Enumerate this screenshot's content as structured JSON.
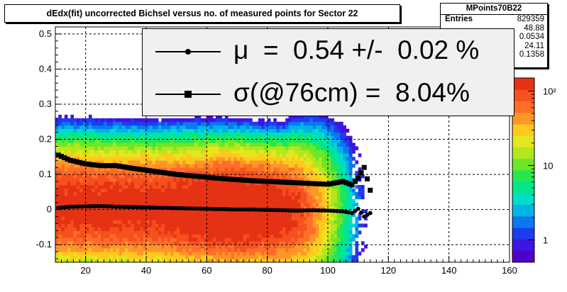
{
  "title": "dEdx(fit) uncorrected Bichsel versus no. of measured points for Sector 22",
  "stats": {
    "name": "MPoints70B22",
    "rows": [
      {
        "key": "Entries",
        "value": "829359"
      },
      {
        "key": "",
        "value": "48.88"
      },
      {
        "key": "",
        "value": "0.0534"
      },
      {
        "key": "",
        "value": "24.11"
      },
      {
        "key": "",
        "value": "0.1358"
      }
    ]
  },
  "legend": {
    "items": [
      {
        "text": "μ  =  0.54 +/-  0.02 %",
        "marker": "circle"
      },
      {
        "text": "σ(@76cm) =  8.04%",
        "marker": "square"
      }
    ]
  },
  "colors": {
    "palette": [
      "#5000c8",
      "#3f16e0",
      "#1e3cf0",
      "#0a78f0",
      "#00b4e6",
      "#00dcc8",
      "#00e68c",
      "#28e650",
      "#6ee628",
      "#b4e61e",
      "#e6e61e",
      "#ffc81e",
      "#ff9628",
      "#ff6e28",
      "#f5501e",
      "#e63214"
    ],
    "markers": "#000000"
  },
  "chart_data": {
    "type": "heatmap",
    "title": "dEdx(fit) uncorrected Bichsel versus no. of measured points for Sector 22",
    "xlabel": "",
    "ylabel": "",
    "xlim": [
      10,
      160
    ],
    "ylim": [
      -0.15,
      0.52
    ],
    "z_scale": "log",
    "zlim": [
      0.5,
      150
    ],
    "x_ticks": [
      20,
      40,
      60,
      80,
      100,
      120,
      140,
      160
    ],
    "y_ticks": [
      -0.1,
      0,
      0.1,
      0.2,
      0.3,
      0.4,
      0.5
    ],
    "z_ticks": [
      "1",
      "10",
      "10²"
    ],
    "grid": true,
    "series": [
      {
        "marker": "circle",
        "x": [
          11,
          15,
          20,
          25,
          30,
          35,
          40,
          45,
          50,
          55,
          60,
          65,
          70,
          75,
          80,
          85,
          90,
          95,
          100,
          105,
          108,
          110,
          112,
          114
        ],
        "values": [
          0.005,
          0.008,
          0.009,
          0.01,
          0.008,
          0.007,
          0.006,
          0.005,
          0.004,
          0.003,
          0.002,
          0.001,
          0.0,
          0.0,
          -0.001,
          -0.002,
          -0.003,
          -0.002,
          -0.003,
          -0.005,
          -0.01,
          0.002,
          -0.02,
          -0.01
        ]
      },
      {
        "marker": "square",
        "x": [
          11,
          15,
          20,
          25,
          30,
          35,
          40,
          45,
          50,
          55,
          60,
          65,
          70,
          75,
          80,
          85,
          90,
          95,
          100,
          105,
          108,
          110,
          112,
          114
        ],
        "values": [
          0.155,
          0.14,
          0.13,
          0.125,
          0.125,
          0.118,
          0.112,
          0.106,
          0.1,
          0.096,
          0.092,
          0.088,
          0.085,
          0.082,
          0.08,
          0.078,
          0.076,
          0.074,
          0.072,
          0.08,
          0.07,
          0.09,
          0.12,
          0.055
        ]
      }
    ]
  }
}
